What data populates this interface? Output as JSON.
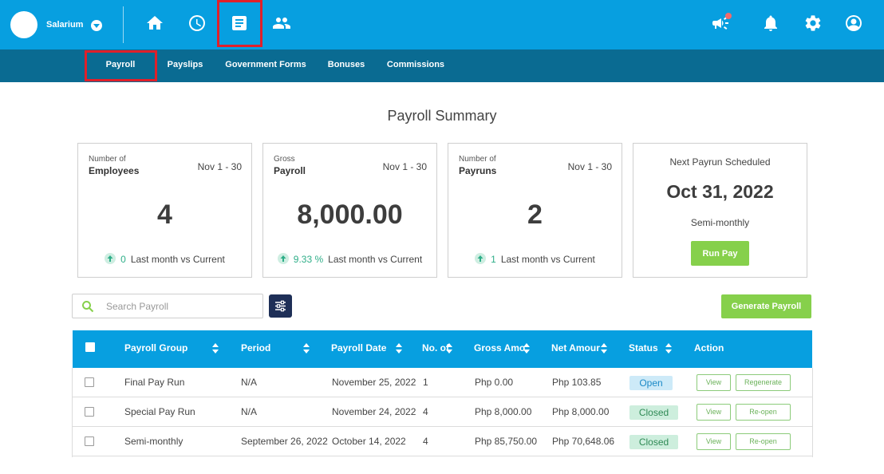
{
  "app": {
    "company_name": "Salarium"
  },
  "top_nav": {
    "icons": [
      "home-icon",
      "clock-icon",
      "document-icon",
      "people-icon",
      "megaphone-icon",
      "bell-icon",
      "gear-icon",
      "user-icon"
    ],
    "active": "document-icon"
  },
  "sub_nav": {
    "items": [
      {
        "label": "Payroll"
      },
      {
        "label": "Payslips"
      },
      {
        "label": "Government Forms"
      },
      {
        "label": "Bonuses"
      },
      {
        "label": "Commissions"
      }
    ],
    "active": "Payroll"
  },
  "page_title": "Payroll Summary",
  "cards": [
    {
      "small": "Number of",
      "label": "Employees",
      "period": "Nov 1 - 30",
      "value": "4",
      "trend_value": "0",
      "trend_text": "Last month vs Current"
    },
    {
      "small": "Gross",
      "label": "Payroll",
      "period": "Nov 1 - 30",
      "value": "8,000.00",
      "trend_value": "9.33 %",
      "trend_text": "Last month vs Current"
    },
    {
      "small": "Number of",
      "label": "Payruns",
      "period": "Nov 1 - 30",
      "value": "2",
      "trend_value": "1",
      "trend_text": "Last month vs Current"
    }
  ],
  "next_payrun": {
    "title": "Next Payrun Scheduled",
    "date": "Oct 31, 2022",
    "frequency": "Semi-monthly",
    "button_label": "Run Pay"
  },
  "search": {
    "placeholder": "Search Payroll",
    "value": ""
  },
  "generate_button": "Generate Payroll",
  "table": {
    "columns": [
      "Payroll Group",
      "Period",
      "Payroll Date",
      "No. of",
      "Gross Amo",
      "Net Amour",
      "Status",
      "Action"
    ],
    "rows": [
      {
        "group": "Final Pay Run",
        "period": "N/A",
        "date": "November 25, 2022",
        "count": "1",
        "gross": "Php 0.00",
        "net": "Php 103.85",
        "status": "Open",
        "action_1": "View",
        "action_2": "Regenerate"
      },
      {
        "group": "Special Pay Run",
        "period": "N/A",
        "date": "November 24, 2022",
        "count": "4",
        "gross": "Php 8,000.00",
        "net": "Php 8,000.00",
        "status": "Closed",
        "action_1": "View",
        "action_2": "Re-open"
      },
      {
        "group": "Semi-monthly",
        "period": "September 26, 2022",
        "date": "October 14, 2022",
        "count": "4",
        "gross": "Php 85,750.00",
        "net": "Php 70,648.06",
        "status": "Closed",
        "action_1": "View",
        "action_2": "Re-open"
      }
    ]
  },
  "colors": {
    "topbar": "#079fe0",
    "subnav": "#0a6b92",
    "accent_green": "#86d04b",
    "highlight_red": "#e0202a",
    "trend_green": "#2eae88"
  }
}
